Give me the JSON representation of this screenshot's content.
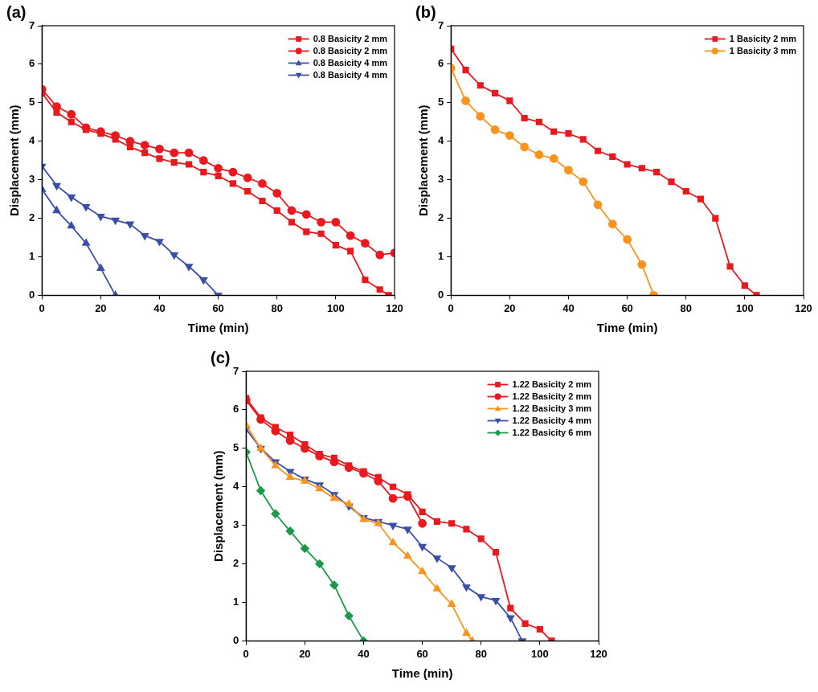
{
  "chart_data": [
    {
      "type": "line",
      "annotations": [
        "(a)"
      ],
      "x_label": "Time (min)",
      "y_label": "Displacement (mm)",
      "xlim": [
        0,
        120
      ],
      "xticks": [
        0,
        20,
        40,
        60,
        80,
        100,
        120
      ],
      "ylim": [
        0,
        7
      ],
      "yticks": [
        0,
        1,
        2,
        3,
        4,
        5,
        6,
        7
      ],
      "grid": false,
      "legend": "upper right",
      "series": [
        {
          "name": "0.8 Basicity 2 mm",
          "color": "#e8191f",
          "marker": "square",
          "x": [
            0,
            5,
            10,
            15,
            20,
            25,
            30,
            35,
            40,
            45,
            50,
            55,
            60,
            65,
            70,
            75,
            80,
            85,
            90,
            95,
            100,
            105,
            110,
            115,
            118
          ],
          "values": [
            5.25,
            4.75,
            4.5,
            4.3,
            4.2,
            4.05,
            3.85,
            3.7,
            3.55,
            3.45,
            3.4,
            3.2,
            3.1,
            2.9,
            2.7,
            2.45,
            2.2,
            1.9,
            1.65,
            1.6,
            1.3,
            1.15,
            0.4,
            0.15,
            0
          ]
        },
        {
          "name": "0.8 Basicity 2 mm",
          "color": "#e8191f",
          "marker": "circle",
          "x": [
            0,
            5,
            10,
            15,
            20,
            25,
            30,
            35,
            40,
            45,
            50,
            55,
            60,
            65,
            70,
            75,
            80,
            85,
            90,
            95,
            100,
            105,
            110,
            115,
            120
          ],
          "values": [
            5.35,
            4.9,
            4.7,
            4.35,
            4.25,
            4.15,
            4.0,
            3.9,
            3.8,
            3.7,
            3.7,
            3.5,
            3.3,
            3.2,
            3.05,
            2.9,
            2.65,
            2.2,
            2.1,
            1.9,
            1.9,
            1.55,
            1.35,
            1.05,
            1.1
          ]
        },
        {
          "name": "0.8 Basicity 4 mm",
          "color": "#3a50a8",
          "marker": "triangle",
          "x": [
            0,
            5,
            10,
            15,
            20,
            25
          ],
          "values": [
            2.75,
            2.2,
            1.8,
            1.35,
            0.7,
            0
          ]
        },
        {
          "name": "0.8 Basicity 4 mm",
          "color": "#3a50a8",
          "marker": "triangle_down",
          "x": [
            0,
            5,
            10,
            15,
            20,
            25,
            30,
            35,
            40,
            45,
            50,
            55,
            60
          ],
          "values": [
            3.35,
            2.85,
            2.55,
            2.3,
            2.05,
            1.95,
            1.85,
            1.55,
            1.4,
            1.05,
            0.75,
            0.4,
            0
          ]
        }
      ]
    },
    {
      "type": "line",
      "annotations": [
        "(b)"
      ],
      "x_label": "Time (min)",
      "y_label": "Displacement (mm)",
      "xlim": [
        0,
        120
      ],
      "xticks": [
        0,
        20,
        40,
        60,
        80,
        100,
        120
      ],
      "ylim": [
        0,
        7
      ],
      "yticks": [
        0,
        1,
        2,
        3,
        4,
        5,
        6,
        7
      ],
      "grid": false,
      "legend": "upper right",
      "series": [
        {
          "name": "1 Basicity 2 mm",
          "color": "#e8191f",
          "marker": "square",
          "x": [
            0,
            5,
            10,
            15,
            20,
            25,
            30,
            35,
            40,
            45,
            50,
            55,
            60,
            65,
            70,
            75,
            80,
            85,
            90,
            95,
            100,
            104
          ],
          "values": [
            6.4,
            5.85,
            5.45,
            5.25,
            5.05,
            4.6,
            4.5,
            4.25,
            4.2,
            4.05,
            3.75,
            3.6,
            3.4,
            3.3,
            3.2,
            2.95,
            2.7,
            2.5,
            2.0,
            0.75,
            0.25,
            0
          ]
        },
        {
          "name": "1 Basicity 3 mm",
          "color": "#f7941d",
          "marker": "circle",
          "x": [
            0,
            5,
            10,
            15,
            20,
            25,
            30,
            35,
            40,
            45,
            50,
            55,
            60,
            65,
            69
          ],
          "values": [
            5.9,
            5.05,
            4.65,
            4.3,
            4.15,
            3.85,
            3.65,
            3.55,
            3.25,
            2.95,
            2.35,
            1.85,
            1.45,
            0.8,
            0
          ]
        }
      ]
    },
    {
      "type": "line",
      "annotations": [
        "(c)"
      ],
      "x_label": "Time (min)",
      "y_label": "Displacement (mm)",
      "xlim": [
        0,
        120
      ],
      "xticks": [
        0,
        20,
        40,
        60,
        80,
        100,
        120
      ],
      "ylim": [
        0,
        7
      ],
      "yticks": [
        0,
        1,
        2,
        3,
        4,
        5,
        6,
        7
      ],
      "grid": false,
      "legend": "upper right",
      "series": [
        {
          "name": "1.22 Basicity 2 mm",
          "color": "#e8191f",
          "marker": "square",
          "x": [
            0,
            5,
            10,
            15,
            20,
            25,
            30,
            35,
            40,
            45,
            50,
            55,
            60,
            65,
            70,
            75,
            80,
            85,
            90,
            95,
            100,
            104
          ],
          "values": [
            6.3,
            5.8,
            5.55,
            5.35,
            5.1,
            4.85,
            4.75,
            4.55,
            4.4,
            4.25,
            4.0,
            3.8,
            3.35,
            3.1,
            3.05,
            2.9,
            2.65,
            2.3,
            0.85,
            0.45,
            0.3,
            0
          ]
        },
        {
          "name": "1.22 Basicity 2 mm",
          "color": "#e8191f",
          "marker": "circle",
          "x": [
            0,
            5,
            10,
            15,
            20,
            25,
            30,
            35,
            40,
            45,
            50,
            55,
            60
          ],
          "values": [
            6.25,
            5.75,
            5.45,
            5.2,
            5.0,
            4.8,
            4.65,
            4.5,
            4.35,
            4.15,
            3.7,
            3.75,
            3.05
          ]
        },
        {
          "name": "1.22 Basicity 3 mm",
          "color": "#f7941d",
          "marker": "triangle",
          "x": [
            0,
            5,
            10,
            15,
            20,
            25,
            30,
            35,
            40,
            45,
            50,
            55,
            60,
            65,
            70,
            75,
            77
          ],
          "values": [
            5.6,
            5.0,
            4.55,
            4.25,
            4.15,
            3.95,
            3.7,
            3.55,
            3.15,
            3.05,
            2.55,
            2.2,
            1.8,
            1.35,
            0.95,
            0.2,
            0
          ]
        },
        {
          "name": "1.22 Basicity 4 mm",
          "color": "#3a50a8",
          "marker": "triangle_down",
          "x": [
            0,
            5,
            10,
            15,
            20,
            25,
            30,
            35,
            40,
            45,
            50,
            55,
            60,
            65,
            70,
            75,
            80,
            85,
            90,
            94
          ],
          "values": [
            5.5,
            5.0,
            4.65,
            4.4,
            4.2,
            4.05,
            3.8,
            3.5,
            3.2,
            3.1,
            3.0,
            2.9,
            2.45,
            2.15,
            1.9,
            1.4,
            1.15,
            1.05,
            0.6,
            0
          ]
        },
        {
          "name": "1.22 Basicity 6 mm",
          "color": "#1b9a4a",
          "marker": "diamond",
          "x": [
            0,
            5,
            10,
            15,
            20,
            25,
            30,
            35,
            40
          ],
          "values": [
            4.9,
            3.9,
            3.3,
            2.85,
            2.4,
            2.0,
            1.45,
            0.65,
            0
          ]
        }
      ]
    }
  ]
}
